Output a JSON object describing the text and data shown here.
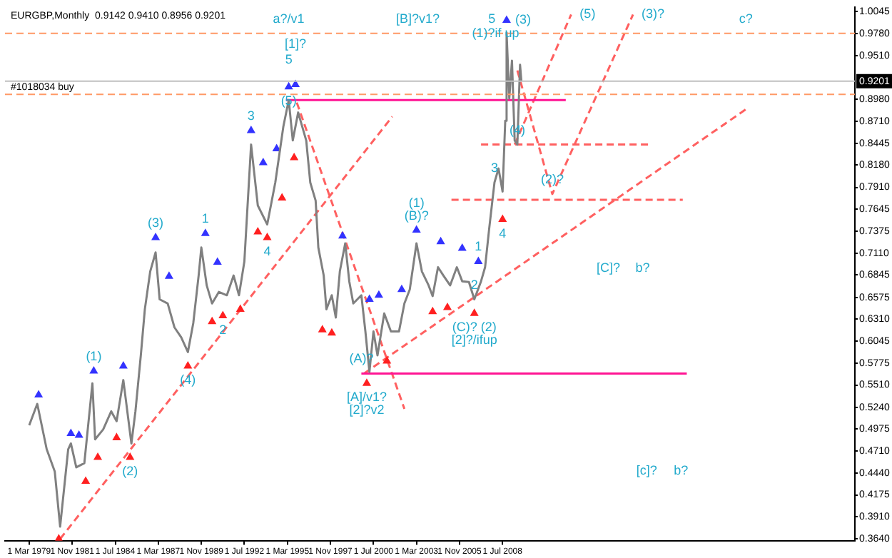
{
  "chart_data": {
    "type": "line",
    "title": "EURGBP,Monthly  0.9142 0.9410 0.8956 0.9201",
    "xlim": [
      "1977-09",
      "2030-05"
    ],
    "ylim": [
      0.362,
      1.0096
    ],
    "xticks": [
      {
        "value": "1979-03-01",
        "label": "1 Mar 1979"
      },
      {
        "value": "1981-11-01",
        "label": "1 Nov 1981"
      },
      {
        "value": "1984-07-01",
        "label": "1 Jul 1984"
      },
      {
        "value": "1987-03-01",
        "label": "1 Mar 1987"
      },
      {
        "value": "1989-11-01",
        "label": "1 Nov 1989"
      },
      {
        "value": "1992-07-01",
        "label": "1 Jul 1992"
      },
      {
        "value": "1995-03-01",
        "label": "1 Mar 1995"
      },
      {
        "value": "1997-11-01",
        "label": "1 Nov 1997"
      },
      {
        "value": "2000-07-01",
        "label": "1 Jul 2000"
      },
      {
        "value": "2003-03-01",
        "label": "1 Mar 2003"
      },
      {
        "value": "2005-11-01",
        "label": "1 Nov 2005"
      },
      {
        "value": "2008-07-01",
        "label": "1 Jul 2008"
      }
    ],
    "yticks": [
      1.0045,
      {
        "value": 0.978,
        "label": "0.9780"
      },
      {
        "value": 0.951,
        "label": "0.9510"
      },
      {
        "value": 0.898,
        "label": "0.8980"
      },
      {
        "value": 0.871,
        "label": "0.8710"
      },
      0.8445,
      {
        "value": 0.818,
        "label": "0.8180"
      },
      {
        "value": 0.791,
        "label": "0.7910"
      },
      0.7645,
      0.7375,
      {
        "value": 0.711,
        "label": "0.7110"
      },
      0.6845,
      0.6575,
      {
        "value": 0.631,
        "label": "0.6310"
      },
      0.6045,
      0.5775,
      {
        "value": 0.551,
        "label": "0.5510"
      },
      {
        "value": 0.524,
        "label": "0.5240"
      },
      0.4975,
      {
        "value": 0.471,
        "label": "0.4710"
      },
      {
        "value": 0.444,
        "label": "0.4440"
      },
      0.4175,
      {
        "value": 0.391,
        "label": "0.3910"
      },
      {
        "value": 0.364,
        "label": "0.3640"
      }
    ],
    "grid": false,
    "legend": false,
    "line_style": "solid",
    "marker": "none",
    "series": [
      {
        "color": "#808080",
        "x": [
          "1979-03",
          "1979-09",
          "1980-04",
          "1980-10",
          "1981-02",
          "1981-08",
          "1981-10",
          "1982-02",
          "1982-08",
          "1983-02",
          "1983-04",
          "1983-10",
          "1984-04",
          "1984-08",
          "1985-01",
          "1985-07",
          "1985-10",
          "1986-02",
          "1986-05",
          "1986-09",
          "1987-01",
          "1987-04",
          "1987-10",
          "1988-03",
          "1988-08",
          "1989-01",
          "1989-05",
          "1989-09",
          "1989-11",
          "1990-03",
          "1990-07",
          "1990-12",
          "1991-06",
          "1991-11",
          "1992-03",
          "1992-07",
          "1992-09",
          "1992-12",
          "1993-05",
          "1993-12",
          "1994-06",
          "1994-12",
          "1995-04",
          "1995-07",
          "1995-11",
          "1996-05",
          "1996-08",
          "1996-12",
          "1997-02",
          "1997-06",
          "1997-08",
          "1997-12",
          "1998-03",
          "1998-06",
          "1998-10",
          "1999-01",
          "1999-04",
          "1999-10",
          "2000-01",
          "2000-04",
          "2000-07",
          "2000-10",
          "2001-03",
          "2001-08",
          "2002-02",
          "2002-06",
          "2002-10",
          "2003-03",
          "2003-07",
          "2003-12",
          "2004-03",
          "2004-07",
          "2004-11",
          "2005-04",
          "2005-09",
          "2006-01",
          "2006-06",
          "2006-10",
          "2007-03",
          "2007-06",
          "2007-09",
          "2008-01",
          "2008-04",
          "2008-07",
          "2008-09",
          "2008-10",
          "2008-12",
          "2009-02",
          "2009-04",
          "2009-06",
          "2009-08",
          "2009-09"
        ],
        "values": [
          0.502,
          0.528,
          0.473,
          0.446,
          0.379,
          0.473,
          0.48,
          0.451,
          0.456,
          0.553,
          0.485,
          0.497,
          0.519,
          0.507,
          0.557,
          0.48,
          0.519,
          0.587,
          0.643,
          0.689,
          0.712,
          0.655,
          0.65,
          0.621,
          0.609,
          0.591,
          0.626,
          0.684,
          0.718,
          0.672,
          0.65,
          0.664,
          0.66,
          0.684,
          0.66,
          0.701,
          0.758,
          0.843,
          0.769,
          0.746,
          0.797,
          0.865,
          0.897,
          0.848,
          0.882,
          0.848,
          0.797,
          0.775,
          0.718,
          0.684,
          0.643,
          0.66,
          0.633,
          0.689,
          0.723,
          0.677,
          0.65,
          0.66,
          0.616,
          0.567,
          0.616,
          0.587,
          0.638,
          0.616,
          0.616,
          0.65,
          0.667,
          0.723,
          0.689,
          0.672,
          0.659,
          0.694,
          0.684,
          0.672,
          0.694,
          0.677,
          0.676,
          0.655,
          0.677,
          0.694,
          0.74,
          0.797,
          0.814,
          0.786,
          0.872,
          0.979,
          0.899,
          0.945,
          0.848,
          0.843,
          0.94,
          0.92
        ]
      },
      {
        "type": "scatter",
        "color": "#3333ff",
        "marker": "triangle",
        "x": [
          "1979-10",
          "1981-10",
          "1982-04",
          "1983-03",
          "1985-01",
          "1987-01",
          "1987-11",
          "1990-02",
          "1990-11",
          "1992-12",
          "1993-09",
          "1994-07",
          "1995-04",
          "1995-09",
          "1998-08",
          "2000-04",
          "2000-11",
          "2002-04",
          "2003-03",
          "2004-09",
          "2006-01",
          "2007-01",
          "2008-10"
        ],
        "values": [
          0.539,
          0.492,
          0.49,
          0.568,
          0.574,
          0.73,
          0.683,
          0.735,
          0.7,
          0.86,
          0.821,
          0.838,
          0.913,
          0.916,
          0.732,
          0.655,
          0.66,
          0.667,
          0.739,
          0.725,
          0.717,
          0.701,
          0.994
        ]
      },
      {
        "type": "scatter",
        "color": "#ff2020",
        "marker": "triangle",
        "x": [
          "1981-01",
          "1982-09",
          "1983-06",
          "1984-08",
          "1985-06",
          "1989-01",
          "1990-07",
          "1991-03",
          "1992-04",
          "1993-05",
          "1993-12",
          "1994-11",
          "1995-08",
          "1997-05",
          "1997-12",
          "2000-02",
          "2001-05",
          "2004-03",
          "2005-02",
          "2006-10",
          "2008-07"
        ],
        "values": [
          0.364,
          0.434,
          0.463,
          0.487,
          0.463,
          0.574,
          0.628,
          0.635,
          0.643,
          0.737,
          0.73,
          0.778,
          0.827,
          0.618,
          0.614,
          0.553,
          0.58,
          0.64,
          0.645,
          0.638,
          0.752
        ]
      },
      {
        "type": "line",
        "color": "#ff1493",
        "x": [
          "1995-02",
          "2012-06"
        ],
        "values": [
          0.897,
          0.897
        ]
      },
      {
        "type": "line",
        "color": "#ff1493",
        "x": [
          "1999-10",
          "2019-12"
        ],
        "values": [
          0.565,
          0.565
        ]
      },
      {
        "type": "line",
        "color": "#ff6060",
        "line_style": "dashed",
        "x": [
          "2007-03",
          "2017-08"
        ],
        "values": [
          0.843,
          0.843
        ]
      },
      {
        "type": "line",
        "color": "#ff6060",
        "line_style": "dashed",
        "x": [
          "2005-05",
          "2019-09"
        ],
        "values": [
          0.776,
          0.776
        ]
      },
      {
        "type": "line",
        "color": "#ff6060",
        "line_style": "dashed",
        "x": [
          "1981-02",
          "2001-09"
        ],
        "values": [
          0.364,
          0.877
        ]
      },
      {
        "type": "line",
        "color": "#ff6060",
        "line_style": "dashed",
        "x": [
          "1995-10",
          "2002-06"
        ],
        "values": [
          0.894,
          0.522
        ]
      },
      {
        "type": "line",
        "color": "#ff6060",
        "line_style": "dashed",
        "x": [
          "1999-12",
          "2023-09"
        ],
        "values": [
          0.565,
          0.887
        ]
      },
      {
        "type": "line",
        "color": "#ff6060",
        "line_style": "dashed",
        "x": [
          "2009-06",
          "2011-08",
          "2016-08"
        ],
        "values": [
          0.933,
          0.783,
          1.001
        ]
      },
      {
        "type": "line",
        "color": "#ff6060",
        "line_style": "dashed",
        "x": [
          "2009-04",
          "2012-10"
        ],
        "values": [
          0.843,
          1.001
        ]
      }
    ],
    "ref_lines": [
      {
        "axis": "y",
        "value": 0.978,
        "label": null,
        "color": "#ff9966",
        "line_style": "dashed"
      },
      {
        "axis": "y",
        "value": 0.904,
        "label": "#1018034 buy",
        "color": "#ff9966",
        "line_style": "dashed"
      },
      {
        "axis": "y",
        "value": 0.9201,
        "label": "0.9201",
        "color": "#c0c0c0",
        "line_style": "solid"
      }
    ],
    "annotations": [
      {
        "text": "(1)",
        "x": "1983-03",
        "y": 0.568
      },
      {
        "text": "(2)",
        "x": "1985-06",
        "y": 0.463
      },
      {
        "text": "(3)",
        "x": "1987-01",
        "y": 0.73
      },
      {
        "text": "(4)",
        "x": "1989-01",
        "y": 0.574
      },
      {
        "text": "1",
        "x": "1990-02",
        "y": 0.735
      },
      {
        "text": "2",
        "x": "1991-03",
        "y": 0.635
      },
      {
        "text": "3",
        "x": "1992-12",
        "y": 0.86
      },
      {
        "text": "4",
        "x": "1993-12",
        "y": 0.73
      },
      {
        "text": "5",
        "x": "1995-04",
        "y": 0.897
      },
      {
        "text": "[1]?",
        "x": "1995-09",
        "y": 0.916
      },
      {
        "text": "(5)",
        "x": "1995-04",
        "y": 0.913
      },
      {
        "text": "a?/v1",
        "x": "1995-04",
        "y": 0.978
      },
      {
        "text": "[B]?v1?",
        "x": "2003-04",
        "y": 0.978
      },
      {
        "text": "(1)?if up",
        "x": "2006-02",
        "y": 0.978
      },
      {
        "text": "5",
        "x": "2007-11",
        "y": 0.978
      },
      {
        "text": "(3)",
        "x": "2008-10",
        "y": 0.994
      },
      {
        "text": "(5)",
        "x": "2012-10",
        "y": 1.001
      },
      {
        "text": "(3)?",
        "x": "2016-08",
        "y": 1.001
      },
      {
        "text": "c?",
        "x": "2023-08",
        "y": 0.978
      },
      {
        "text": "(B)?",
        "x": "2003-03",
        "y": 0.739
      },
      {
        "text": "(1)",
        "x": "2003-03",
        "y": 0.739
      },
      {
        "text": "1",
        "x": "2007-01",
        "y": 0.701
      },
      {
        "text": "2",
        "x": "2006-10",
        "y": 0.655
      },
      {
        "text": "(C)? (2)",
        "x": "2006-10",
        "y": 0.638
      },
      {
        "text": "[2]?/ifup",
        "x": "2006-10",
        "y": 0.638
      },
      {
        "text": "[A]/v1?",
        "x": "2000-02",
        "y": 0.553
      },
      {
        "text": "[2]?v2",
        "x": "2000-02",
        "y": 0.553
      },
      {
        "text": "(A)?",
        "x": "1999-10",
        "y": 0.565
      },
      {
        "text": "3",
        "x": "2008-01",
        "y": 0.797
      },
      {
        "text": "4",
        "x": "2008-07",
        "y": 0.752
      },
      {
        "text": "(4)",
        "x": "2009-06",
        "y": 0.843
      },
      {
        "text": "(2)?",
        "x": "2011-08",
        "y": 0.783
      },
      "[C]?",
      "b?",
      "[c]?",
      "b?"
    ]
  }
}
